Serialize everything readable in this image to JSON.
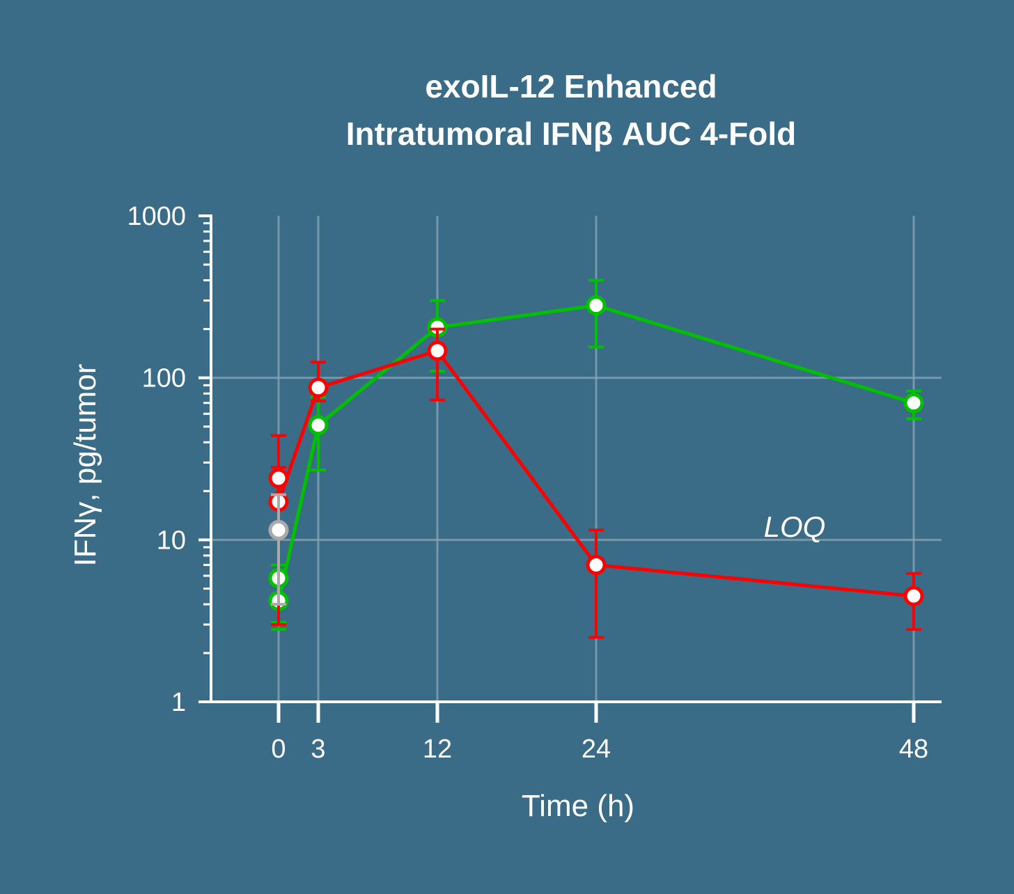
{
  "colors": {
    "background": "#3a6c88",
    "axis": "#ffffff",
    "grid": "#8aa6b7"
  },
  "chart_data": {
    "type": "line",
    "title": [
      "exoIL-12 Enhanced",
      "Intratumoral IFNβ AUC 4-Fold"
    ],
    "xlabel": "Time (h)",
    "ylabel": "IFNγ, pg/tumor",
    "y_scale": "log",
    "xlim": [
      -4,
      49
    ],
    "ylim": [
      1,
      1000
    ],
    "x_ticks": [
      0,
      3,
      12,
      24,
      48
    ],
    "x_tick_labels": [
      "0",
      "3",
      "12",
      "24",
      "48"
    ],
    "y_ticks": [
      1,
      10,
      100,
      1000
    ],
    "y_tick_labels": [
      "1",
      "10",
      "100",
      "1000"
    ],
    "grid": true,
    "annotations": [
      {
        "text": "LOQ",
        "x": 39,
        "y": 12
      }
    ],
    "series": [
      {
        "color": "#00c000",
        "points": [
          {
            "x": 0,
            "y": 5.8,
            "err_low": 3.1,
            "err_high": 7.0
          },
          {
            "x": 0,
            "y": 4.2,
            "err_low": 2.8,
            "err_high": 6.0
          },
          {
            "x": 3,
            "y": 51,
            "err_low": 27,
            "err_high": 76
          },
          {
            "x": 12,
            "y": 205,
            "err_low": 110,
            "err_high": 300
          },
          {
            "x": 24,
            "y": 280,
            "err_low": 155,
            "err_high": 400
          },
          {
            "x": 48,
            "y": 70,
            "err_low": 56,
            "err_high": 83
          }
        ]
      },
      {
        "color": "#ff0000",
        "points": [
          {
            "x": 0,
            "y": 24,
            "err_low": 17,
            "err_high": 44
          },
          {
            "x": 0,
            "y": 17.2,
            "err_low": 3.0,
            "err_high": 28
          },
          {
            "x": 3,
            "y": 87,
            "err_low": 72,
            "err_high": 125
          },
          {
            "x": 12,
            "y": 147,
            "err_low": 73,
            "err_high": 200
          },
          {
            "x": 24,
            "y": 7.0,
            "err_low": 2.5,
            "err_high": 11.5
          },
          {
            "x": 48,
            "y": 4.5,
            "err_low": 2.8,
            "err_high": 6.2
          }
        ]
      },
      {
        "color": "#aaaaaa",
        "points": [
          {
            "x": 0,
            "y": 11.5,
            "err_low": 4.0,
            "err_high": 19
          }
        ]
      }
    ]
  }
}
